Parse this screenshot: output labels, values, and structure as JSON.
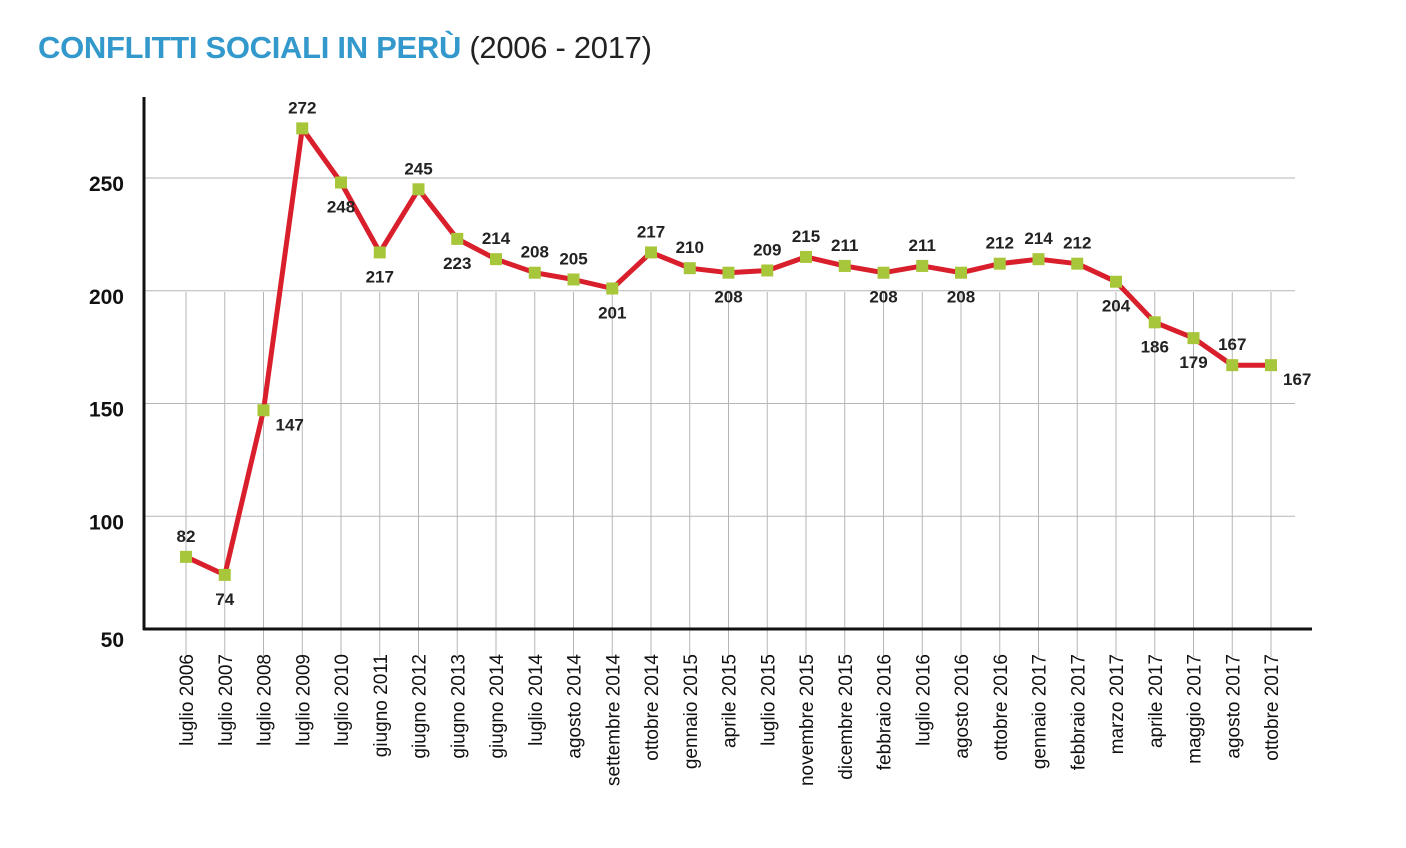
{
  "chart_data": {
    "type": "line",
    "title": "CONFLITTI SOCIALI IN PERÙ",
    "subtitle": "(2006 - 2017)",
    "xlabel": "",
    "ylabel": "",
    "ylim": [
      50,
      275
    ],
    "yticks": [
      50,
      100,
      150,
      200,
      250
    ],
    "grid": "horizontal and vertical",
    "legend": "none",
    "colors": {
      "line": "#d91f2b",
      "marker": "#a8c63a",
      "title": "#3399cc"
    },
    "categories": [
      "luglio 2006",
      "luglio 2007",
      "luglio 2008",
      "luglio 2009",
      "luglio 2010",
      "giugno 2011",
      "giugno 2012",
      "giugno 2013",
      "giugno 2014",
      "luglio 2014",
      "agosto 2014",
      "settembre 2014",
      "ottobre 2014",
      "gennaio 2015",
      "aprile 2015",
      "luglio 2015",
      "novembre 2015",
      "dicembre 2015",
      "febbraio 2016",
      "luglio 2016",
      "agosto 2016",
      "ottobre 2016",
      "gennaio 2017",
      "febbraio 2017",
      "marzo 2017",
      "aprile 2017",
      "maggio 2017",
      "agosto 2017",
      "ottobre 2017"
    ],
    "series": [
      {
        "values": [
          82,
          74,
          147,
          272,
          248,
          217,
          245,
          223,
          214,
          208,
          205,
          201,
          217,
          210,
          208,
          209,
          215,
          211,
          208,
          211,
          208,
          212,
          214,
          212,
          204,
          186,
          179,
          167,
          167
        ]
      }
    ]
  }
}
